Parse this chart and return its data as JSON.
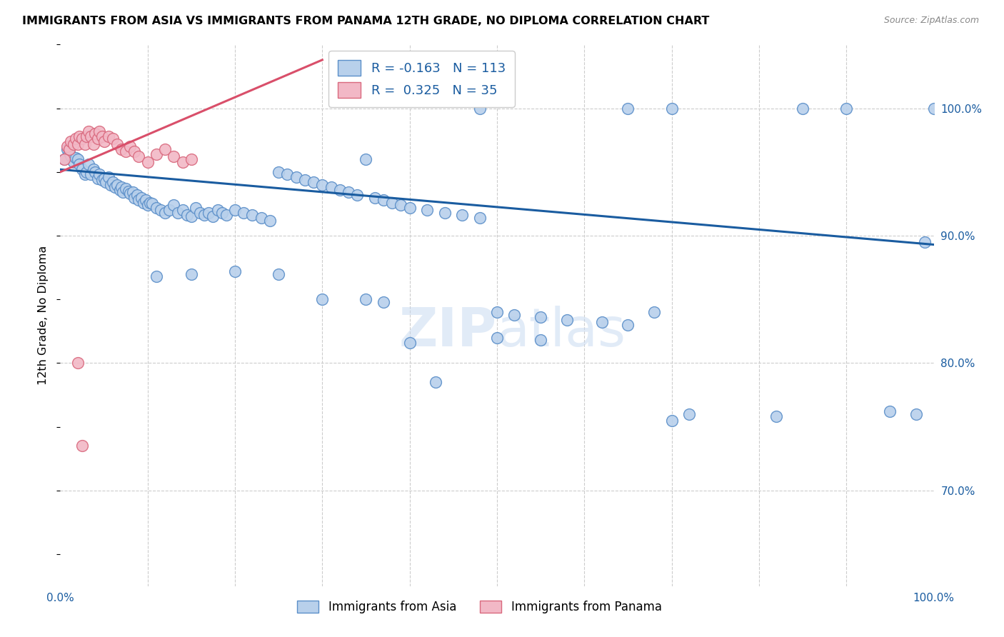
{
  "title": "IMMIGRANTS FROM ASIA VS IMMIGRANTS FROM PANAMA 12TH GRADE, NO DIPLOMA CORRELATION CHART",
  "source": "Source: ZipAtlas.com",
  "ylabel": "12th Grade, No Diploma",
  "legend_r_asia": "-0.163",
  "legend_n_asia": "113",
  "legend_r_panama": "0.325",
  "legend_n_panama": "35",
  "color_asia": "#b8d0eb",
  "color_panama": "#f2b8c6",
  "color_asia_edge": "#5b8fc9",
  "color_panama_edge": "#d9697e",
  "color_asia_line": "#1a5ca0",
  "color_panama_line": "#d94f6a",
  "watermark": "ZIPAtlas",
  "xlim": [
    0.0,
    1.0
  ],
  "ylim": [
    0.625,
    1.05
  ],
  "y_ticks": [
    0.7,
    0.8,
    0.9,
    1.0
  ],
  "y_tick_labels": [
    "70.0%",
    "80.0%",
    "90.0%",
    "100.0%"
  ],
  "x_ticks": [
    0.0,
    0.1,
    0.2,
    0.3,
    0.4,
    0.5,
    0.6,
    0.7,
    0.8,
    0.9,
    1.0
  ],
  "x_tick_labels": [
    "0.0%",
    "",
    "",
    "",
    "",
    "",
    "",
    "",
    "",
    "",
    "100.0%"
  ],
  "asia_line_x0": 0.0,
  "asia_line_x1": 1.0,
  "asia_line_y0": 0.952,
  "asia_line_y1": 0.893,
  "panama_line_x0": 0.0,
  "panama_line_x1": 0.3,
  "panama_line_y0": 0.95,
  "panama_line_y1": 1.038,
  "asia_x": [
    0.005,
    0.008,
    0.01,
    0.012,
    0.015,
    0.018,
    0.02,
    0.022,
    0.025,
    0.028,
    0.03,
    0.032,
    0.035,
    0.038,
    0.04,
    0.043,
    0.045,
    0.048,
    0.05,
    0.052,
    0.055,
    0.058,
    0.06,
    0.063,
    0.065,
    0.068,
    0.07,
    0.072,
    0.075,
    0.078,
    0.08,
    0.083,
    0.085,
    0.088,
    0.09,
    0.093,
    0.095,
    0.098,
    0.1,
    0.103,
    0.105,
    0.11,
    0.115,
    0.12,
    0.125,
    0.13,
    0.135,
    0.14,
    0.145,
    0.15,
    0.155,
    0.16,
    0.165,
    0.17,
    0.175,
    0.18,
    0.185,
    0.19,
    0.2,
    0.21,
    0.22,
    0.23,
    0.24,
    0.25,
    0.26,
    0.27,
    0.28,
    0.29,
    0.3,
    0.31,
    0.32,
    0.33,
    0.34,
    0.35,
    0.36,
    0.37,
    0.38,
    0.39,
    0.4,
    0.42,
    0.44,
    0.46,
    0.48,
    0.5,
    0.52,
    0.55,
    0.58,
    0.62,
    0.65,
    0.68,
    0.7,
    0.72,
    0.82,
    0.85,
    0.9,
    0.95,
    0.98,
    0.99,
    1.0,
    0.65,
    0.7,
    0.48,
    0.5,
    0.55,
    0.4,
    0.43,
    0.35,
    0.37,
    0.3,
    0.25,
    0.2,
    0.15,
    0.11
  ],
  "asia_y": [
    0.96,
    0.968,
    0.965,
    0.963,
    0.958,
    0.961,
    0.96,
    0.956,
    0.952,
    0.948,
    0.95,
    0.956,
    0.948,
    0.952,
    0.95,
    0.945,
    0.948,
    0.944,
    0.945,
    0.942,
    0.946,
    0.94,
    0.942,
    0.938,
    0.94,
    0.936,
    0.938,
    0.934,
    0.937,
    0.935,
    0.933,
    0.934,
    0.93,
    0.932,
    0.928,
    0.93,
    0.926,
    0.928,
    0.924,
    0.926,
    0.925,
    0.922,
    0.92,
    0.918,
    0.92,
    0.924,
    0.918,
    0.92,
    0.916,
    0.915,
    0.922,
    0.918,
    0.916,
    0.918,
    0.915,
    0.92,
    0.918,
    0.916,
    0.92,
    0.918,
    0.916,
    0.914,
    0.912,
    0.95,
    0.948,
    0.946,
    0.944,
    0.942,
    0.94,
    0.938,
    0.936,
    0.934,
    0.932,
    0.96,
    0.93,
    0.928,
    0.926,
    0.924,
    0.922,
    0.92,
    0.918,
    0.916,
    0.914,
    0.84,
    0.838,
    0.836,
    0.834,
    0.832,
    0.83,
    0.84,
    0.755,
    0.76,
    0.758,
    1.0,
    1.0,
    0.762,
    0.76,
    0.895,
    1.0,
    1.0,
    1.0,
    1.0,
    0.82,
    0.818,
    0.816,
    0.785,
    0.85,
    0.848,
    0.85,
    0.87,
    0.872,
    0.87,
    0.868
  ],
  "panama_x": [
    0.005,
    0.008,
    0.01,
    0.012,
    0.015,
    0.018,
    0.02,
    0.022,
    0.025,
    0.028,
    0.03,
    0.032,
    0.035,
    0.038,
    0.04,
    0.043,
    0.045,
    0.048,
    0.05,
    0.055,
    0.06,
    0.065,
    0.07,
    0.075,
    0.08,
    0.085,
    0.09,
    0.1,
    0.11,
    0.12,
    0.13,
    0.14,
    0.15,
    0.02,
    0.025
  ],
  "panama_y": [
    0.96,
    0.97,
    0.968,
    0.974,
    0.972,
    0.976,
    0.972,
    0.978,
    0.976,
    0.972,
    0.978,
    0.982,
    0.978,
    0.972,
    0.98,
    0.976,
    0.982,
    0.978,
    0.974,
    0.978,
    0.976,
    0.972,
    0.968,
    0.966,
    0.97,
    0.966,
    0.962,
    0.958,
    0.964,
    0.968,
    0.962,
    0.958,
    0.96,
    0.8,
    0.735
  ]
}
